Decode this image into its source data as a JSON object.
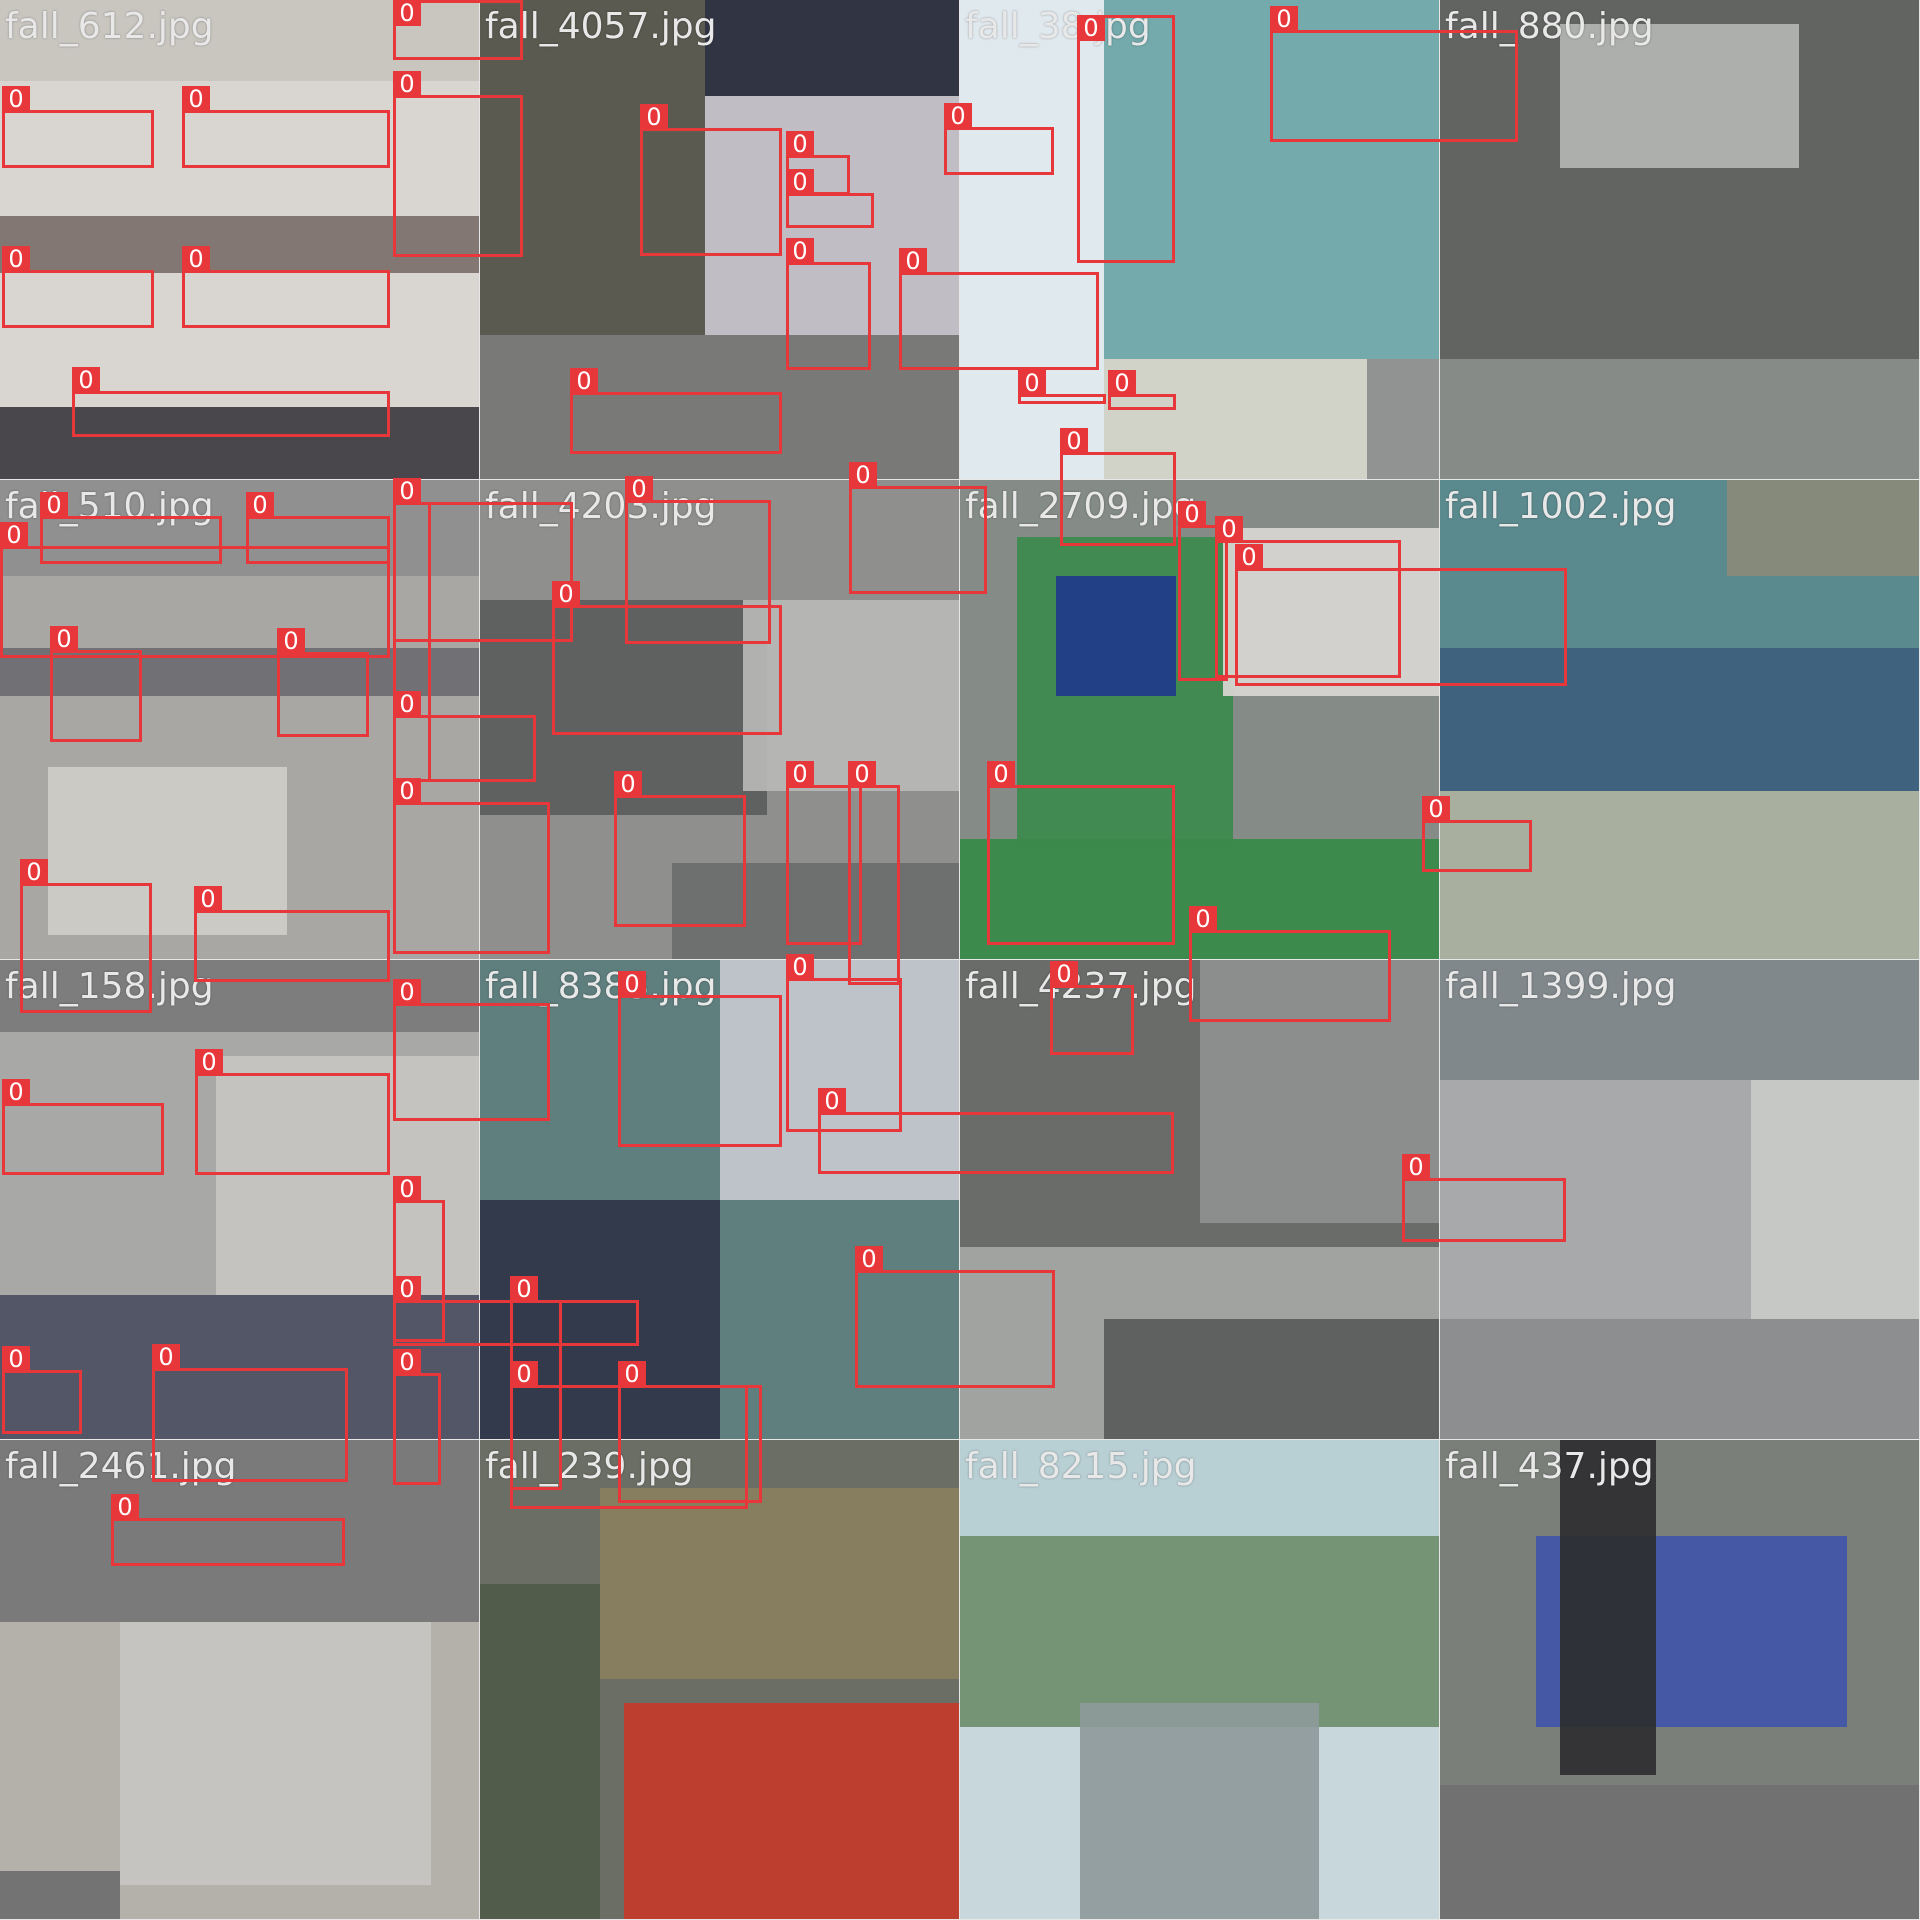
{
  "image": {
    "kind": "training batch mosaic",
    "grid": "4x4",
    "box_color": "#e8373a",
    "class_label": "0"
  },
  "tiles": [
    {
      "label": "fall_612.jpg",
      "palette": [
        "#d9d6d0",
        "#7b6f6a",
        "#3d3b40",
        "#c8c4be"
      ]
    },
    {
      "label": "fall_4057.jpg",
      "palette": [
        "#5a5a50",
        "#2e3142",
        "#c9c6cf",
        "#7c7c7c"
      ]
    },
    {
      "label": "fall_38.jpg",
      "palette": [
        "#dfe8ee",
        "#6aa4a6",
        "#cfd0c6",
        "#8a8a8a"
      ]
    },
    {
      "label": "fall_880.jpg",
      "palette": [
        "#626462",
        "#8a8e8a",
        "#b3b5b2",
        "#4f5150"
      ]
    },
    {
      "label": "fall_510.jpg",
      "palette": [
        "#a9a7a4",
        "#6d6b70",
        "#cfcdc8",
        "#8e8e8e"
      ]
    },
    {
      "label": "fall_4203.jpg",
      "palette": [
        "#8f908d",
        "#5b5d5d",
        "#b9b9b6",
        "#6b6c6c"
      ]
    },
    {
      "label": "fall_2709.jpg",
      "palette": [
        "#3c8a4c",
        "#1f3a8a",
        "#d9d7d2",
        "#8c8c8c"
      ]
    },
    {
      "label": "fall_1002.jpg",
      "palette": [
        "#5b8a8e",
        "#3d5e7e",
        "#b0b2a0",
        "#8a8a7a"
      ]
    },
    {
      "label": "fall_158.jpg",
      "palette": [
        "#a8a8a6",
        "#4c4f62",
        "#c8c6c2",
        "#7a7a7a"
      ]
    },
    {
      "label": "fall_8383.jpg",
      "palette": [
        "#5f7e7e",
        "#2f3447",
        "#c7c8cf",
        "#a3a3a0"
      ]
    },
    {
      "label": "fall_4237.jpg",
      "palette": [
        "#6a6c6a",
        "#8f9190",
        "#a6a8a6",
        "#595b5a"
      ]
    },
    {
      "label": "fall_1399.jpg",
      "palette": [
        "#a7a9aa",
        "#7e858a",
        "#c9cbc8",
        "#8a8c8d"
      ]
    },
    {
      "label": "fall_2461.jpg",
      "palette": [
        "#7a7a7a",
        "#c8c6c1",
        "#b8b5af",
        "#6e6e6e"
      ]
    },
    {
      "label": "fall_239.jpg",
      "palette": [
        "#6b6e64",
        "#8a7f5e",
        "#c43a2a",
        "#4f5a48"
      ]
    },
    {
      "label": "fall_8215.jpg",
      "palette": [
        "#b7cfd4",
        "#6f8f6e",
        "#c9d8dc",
        "#8e9a9a"
      ]
    },
    {
      "label": "fall_437.jpg",
      "palette": [
        "#7b7f7a",
        "#4055a8",
        "#2e2e30",
        "#707070"
      ]
    }
  ],
  "boxes": [
    {
      "tag": "0"
    },
    {
      "tag": "0"
    },
    {
      "tag": "0"
    },
    {
      "tag": "0"
    },
    {
      "tag": "0"
    },
    {
      "tag": "0"
    },
    {
      "tag": "0"
    },
    {
      "tag": "0"
    },
    {
      "tag": "0"
    },
    {
      "tag": "0"
    },
    {
      "tag": "0"
    },
    {
      "tag": "0"
    },
    {
      "tag": "0"
    },
    {
      "tag": "0"
    },
    {
      "tag": "0"
    },
    {
      "tag": "0"
    },
    {
      "tag": "0"
    },
    {
      "tag": "0"
    },
    {
      "tag": "0"
    },
    {
      "tag": "0"
    },
    {
      "tag": "0"
    },
    {
      "tag": "0"
    },
    {
      "tag": "0"
    },
    {
      "tag": "0"
    },
    {
      "tag": "0"
    },
    {
      "tag": "0"
    },
    {
      "tag": "0"
    },
    {
      "tag": "0"
    },
    {
      "tag": "0"
    },
    {
      "tag": "0"
    },
    {
      "tag": "0"
    },
    {
      "tag": "0"
    },
    {
      "tag": "0"
    },
    {
      "tag": "0"
    },
    {
      "tag": "0"
    },
    {
      "tag": "0"
    },
    {
      "tag": "0"
    },
    {
      "tag": "0"
    },
    {
      "tag": "0"
    },
    {
      "tag": "0"
    },
    {
      "tag": "0"
    },
    {
      "tag": "0"
    },
    {
      "tag": "0"
    },
    {
      "tag": "0"
    },
    {
      "tag": "0"
    },
    {
      "tag": "0"
    },
    {
      "tag": "0"
    },
    {
      "tag": "0"
    },
    {
      "tag": "0"
    },
    {
      "tag": "0"
    },
    {
      "tag": "0"
    },
    {
      "tag": "0"
    },
    {
      "tag": "0"
    },
    {
      "tag": "0"
    },
    {
      "tag": "0"
    },
    {
      "tag": "0"
    },
    {
      "tag": "0"
    },
    {
      "tag": "0"
    },
    {
      "tag": "0"
    },
    {
      "tag": "0"
    }
  ]
}
